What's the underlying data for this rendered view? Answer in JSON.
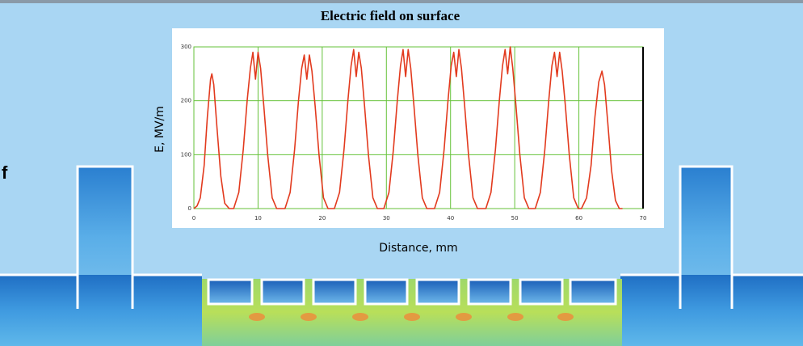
{
  "side_text": "f",
  "chart_data": {
    "type": "line",
    "title": "Electric field on surface",
    "x_label": "Distance, mm",
    "y_label": "E, MV/m",
    "color": "#e23a1e",
    "grid": true,
    "grid_color": "#66c23a",
    "xlim": [
      0,
      70
    ],
    "ylim": [
      0,
      300
    ],
    "xticks": [
      0,
      10,
      20,
      30,
      40,
      50,
      60,
      70
    ],
    "yticks": [
      0,
      100,
      200,
      300
    ],
    "x": [
      0,
      0.5,
      1.0,
      1.6,
      2.1,
      2.6,
      2.8,
      3.1,
      3.6,
      4.2,
      4.8,
      5.5,
      6.2,
      7.0,
      7.7,
      8.3,
      8.8,
      9.2,
      9.6,
      10.0,
      10.4,
      10.9,
      11.5,
      12.2,
      12.9,
      14.2,
      15.0,
      15.7,
      16.3,
      16.8,
      17.2,
      17.6,
      18.0,
      18.4,
      18.9,
      19.5,
      20.2,
      20.9,
      21.9,
      22.7,
      23.4,
      24.0,
      24.5,
      24.9,
      25.3,
      25.7,
      26.1,
      26.6,
      27.2,
      27.9,
      28.6,
      29.6,
      30.4,
      31.1,
      31.7,
      32.2,
      32.6,
      33.0,
      33.4,
      33.8,
      34.3,
      34.9,
      35.6,
      36.3,
      37.5,
      38.3,
      39.0,
      39.6,
      40.1,
      40.5,
      40.9,
      41.3,
      41.7,
      42.2,
      42.8,
      43.5,
      44.2,
      45.5,
      46.3,
      47.0,
      47.6,
      48.1,
      48.5,
      48.9,
      49.3,
      49.7,
      50.2,
      50.8,
      51.5,
      52.2,
      53.2,
      54.0,
      54.7,
      55.3,
      55.8,
      56.2,
      56.6,
      57.0,
      57.4,
      57.9,
      58.5,
      59.2,
      59.9,
      60.4,
      61.2,
      61.9,
      62.5,
      63.1,
      63.6,
      64.0,
      64.5,
      65.1,
      65.7,
      66.3,
      66.8
    ],
    "values": [
      0,
      5,
      20,
      80,
      170,
      240,
      250,
      230,
      150,
      60,
      10,
      0,
      0,
      30,
      110,
      200,
      260,
      290,
      240,
      290,
      260,
      190,
      100,
      20,
      0,
      0,
      30,
      110,
      200,
      260,
      285,
      240,
      285,
      255,
      190,
      100,
      20,
      0,
      0,
      30,
      110,
      200,
      265,
      295,
      245,
      290,
      260,
      190,
      100,
      20,
      0,
      0,
      30,
      110,
      200,
      265,
      295,
      245,
      295,
      260,
      190,
      100,
      20,
      0,
      0,
      30,
      110,
      200,
      265,
      290,
      245,
      295,
      260,
      190,
      100,
      20,
      0,
      0,
      30,
      110,
      200,
      265,
      295,
      250,
      300,
      260,
      190,
      100,
      20,
      0,
      0,
      30,
      110,
      200,
      265,
      290,
      245,
      290,
      255,
      190,
      100,
      20,
      0,
      0,
      20,
      80,
      170,
      235,
      255,
      230,
      160,
      70,
      15,
      0,
      0
    ]
  }
}
